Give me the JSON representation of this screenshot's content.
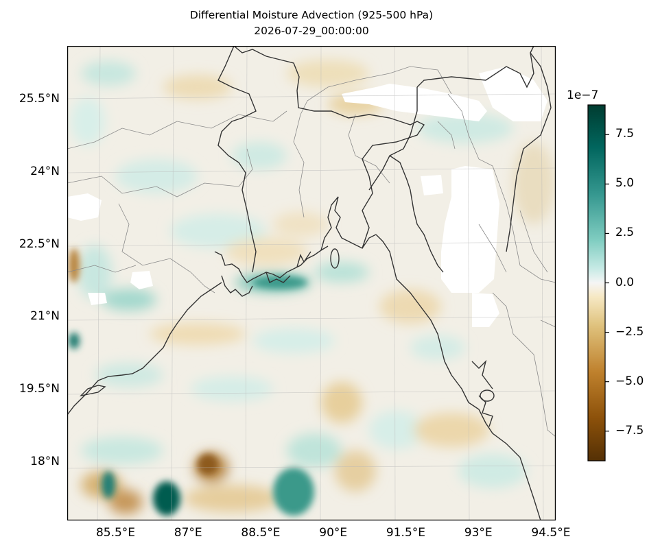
{
  "title": "Differential Moisture Advection (925-500 hPa)",
  "subtitle": "2026-07-29_00:00:00",
  "map": {
    "lon_ticks": [
      {
        "value": 85.5,
        "label": "85.5°E"
      },
      {
        "value": 87,
        "label": "87°E"
      },
      {
        "value": 88.5,
        "label": "88.5°E"
      },
      {
        "value": 90,
        "label": "90°E"
      },
      {
        "value": 91.5,
        "label": "91.5°E"
      },
      {
        "value": 93,
        "label": "93°E"
      },
      {
        "value": 94.5,
        "label": "94.5°E"
      }
    ],
    "lat_ticks": [
      {
        "value": 25.5,
        "label": "25.5°N"
      },
      {
        "value": 24,
        "label": "24°N"
      },
      {
        "value": 22.5,
        "label": "22.5°N"
      },
      {
        "value": 21,
        "label": "21°N"
      },
      {
        "value": 19.5,
        "label": "19.5°N"
      },
      {
        "value": 18,
        "label": "18°N"
      }
    ],
    "lon_range": [
      84.5,
      94.6
    ],
    "lat_range": [
      16.8,
      26.6
    ],
    "colormap": "BrBG",
    "colors": {
      "dry": "#543005",
      "neutral": "#f5f5f5",
      "wet": "#003c30"
    }
  },
  "colorbar": {
    "exponent_label": "1e−7",
    "range": [
      -9,
      9
    ],
    "ticks": [
      {
        "value": 7.5,
        "label": "7.5"
      },
      {
        "value": 5.0,
        "label": "5.0"
      },
      {
        "value": 2.5,
        "label": "2.5"
      },
      {
        "value": 0.0,
        "label": "0.0"
      },
      {
        "value": -2.5,
        "label": "−2.5"
      },
      {
        "value": -5.0,
        "label": "−5.0"
      },
      {
        "value": -7.5,
        "label": "−7.5"
      }
    ]
  }
}
